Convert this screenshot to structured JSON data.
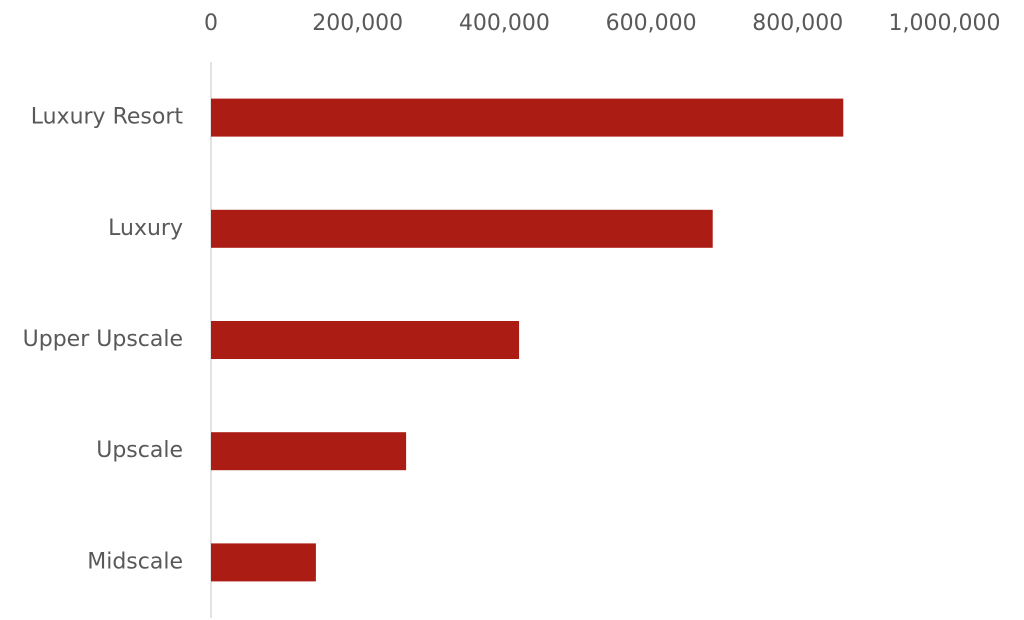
{
  "chart_data": {
    "type": "bar",
    "orientation": "horizontal",
    "categories": [
      "Luxury Resort",
      "Luxury",
      "Upper Upscale",
      "Upscale",
      "Midscale"
    ],
    "values": [
      862000,
      684000,
      420000,
      266000,
      143000
    ],
    "color": "#ab1c14",
    "xlim": [
      0,
      1000000
    ],
    "xticks": [
      0,
      {
        "value": 200000,
        "label": "200,000"
      },
      {
        "value": 400000,
        "label": "400,000"
      },
      {
        "value": 600000,
        "label": "600,000"
      },
      {
        "value": 800000,
        "label": "800,000"
      },
      {
        "value": 1000000,
        "label": "1,000,000"
      }
    ]
  }
}
